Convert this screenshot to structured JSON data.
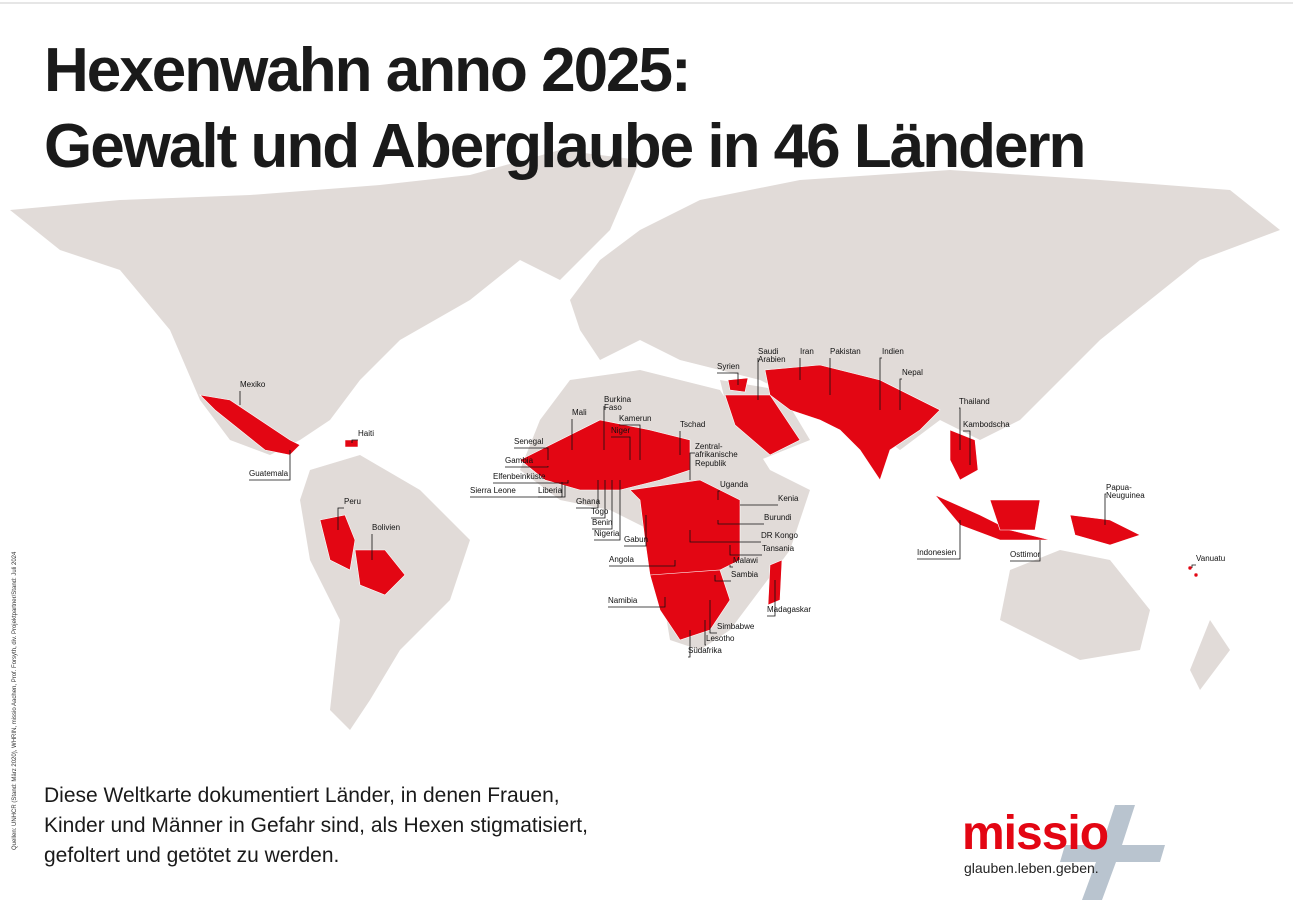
{
  "title": [
    "Hexenwahn anno 2025:",
    "Gewalt und Aberglaube in 46 Ländern"
  ],
  "countries": [
    "Mexiko",
    "Haiti",
    "Guatemala",
    "Peru",
    "Bolivien",
    "Senegal",
    "Gambia",
    "Elfenbeinküste",
    "Sierra Leone",
    "Liberia",
    "Mali",
    "Burkina\nFaso",
    "Kamerun",
    "Niger",
    "Tschad",
    "Zentral-\nafrikanische\nRepublik",
    "Ghana",
    "Togo",
    "Benin",
    "Nigeria",
    "Gabun",
    "Uganda",
    "Kenia",
    "Burundi",
    "DR Kongo",
    "Tansania",
    "Angola",
    "Malawi",
    "Sambia",
    "Namibia",
    "Madagaskar",
    "Simbabwe",
    "Lesotho",
    "Südafrika",
    "Syrien",
    "Saudi\nArabien",
    "Iran",
    "Pakistan",
    "Indien",
    "Nepal",
    "Thailand",
    "Kambodscha",
    "Indonesien",
    "Osttimor",
    "Papua-\nNeuguinea",
    "Vanuatu"
  ],
  "description": [
    "Diese Weltkarte dokumentiert Länder, in denen Frauen,",
    "Kinder und Männer in Gefahr sind, als Hexen stigmatisiert,",
    "gefoltert und getötet zu werden."
  ],
  "logo": {
    "name": "missio",
    "slogan": "glauben.leben.geben."
  },
  "source": "Quellen: UNHCR (Stand: März 2020), WHRIN, missio Aachen, Prof. Forsyth, div. Projektpartner/Stand: Juli 2024"
}
